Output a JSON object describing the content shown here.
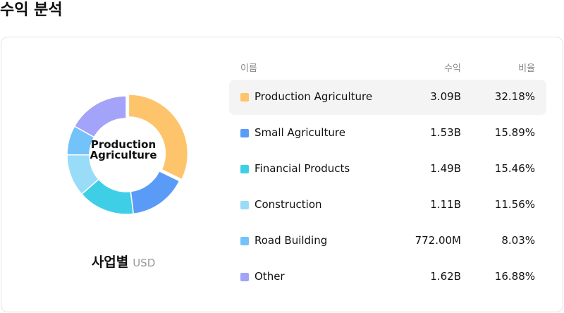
{
  "header": {
    "title": "수익 분석"
  },
  "chart_data": {
    "type": "pie",
    "donut": true,
    "categories": [
      "Production Agriculture",
      "Small Agriculture",
      "Financial Products",
      "Construction",
      "Road Building",
      "Other"
    ],
    "values": [
      32.18,
      15.89,
      15.46,
      11.56,
      8.03,
      16.88
    ],
    "value_labels": [
      "32.18%",
      "15.89%",
      "15.46%",
      "11.56%",
      "8.03%",
      "16.88%"
    ],
    "colors": [
      "#fdc46b",
      "#5b9bf8",
      "#3ecfe6",
      "#98dcf8",
      "#73c2f9",
      "#a3a3f9"
    ],
    "selected_index": 0,
    "subtitle": "사업별",
    "unit": "USD"
  },
  "table": {
    "columns": [
      "이름",
      "수익",
      "비율"
    ],
    "revenue": [
      "3.09B",
      "1.53B",
      "1.49B",
      "1.11B",
      "772.00M",
      "1.62B"
    ]
  }
}
